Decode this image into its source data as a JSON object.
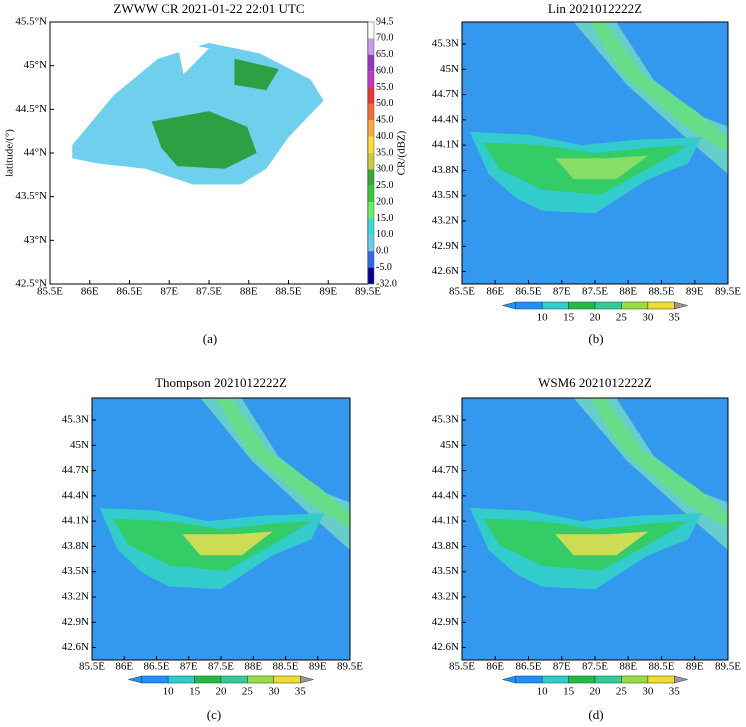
{
  "panels": [
    {
      "title": "ZWWW CR 2021-01-22 22:01 UTC",
      "ylabel": "latitude/(°)",
      "yticks": [
        "45.5°N",
        "45°N",
        "44.5°N",
        "44°N",
        "43.5°N",
        "43°N",
        "42.5°N"
      ],
      "xticks": [
        "85.5E",
        "86E",
        "86.5E",
        "87E",
        "87.5E",
        "88E",
        "88.5E",
        "89E",
        "89.5E"
      ],
      "colorbar": {
        "label": "CR/(dBZ)",
        "ticks": [
          "94.5",
          "70.0",
          "65.0",
          "60.0",
          "55.0",
          "50.0",
          "45.0",
          "40.0",
          "35.0",
          "30.0",
          "25.0",
          "20.0",
          "15.0",
          "10.0",
          "0.0",
          "-5.0",
          "-32.0"
        ]
      },
      "caption": "(a)"
    },
    {
      "title": "Lin 2021012222Z",
      "yticks": [
        "45.3N",
        "45N",
        "44.7N",
        "44.4N",
        "44.1N",
        "43.8N",
        "43.5N",
        "43.2N",
        "42.9N",
        "42.6N"
      ],
      "xticks": [
        "85.5E",
        "86E",
        "86.5E",
        "87E",
        "87.5E",
        "88E",
        "88.5E",
        "89E",
        "89.5E"
      ],
      "colorbar": {
        "ticks": [
          "10",
          "15",
          "20",
          "25",
          "30",
          "35"
        ]
      },
      "caption": "(b)"
    },
    {
      "title": "Thompson 2021012222Z",
      "yticks": [
        "45.3N",
        "45N",
        "44.7N",
        "44.4N",
        "44.1N",
        "43.8N",
        "43.5N",
        "43.2N",
        "42.9N",
        "42.6N"
      ],
      "xticks": [
        "85.5E",
        "86E",
        "86.5E",
        "87E",
        "87.5E",
        "88E",
        "88.5E",
        "89E",
        "89.5E"
      ],
      "colorbar": {
        "ticks": [
          "10",
          "15",
          "20",
          "25",
          "30",
          "35"
        ]
      },
      "caption": "(c)"
    },
    {
      "title": "WSM6 2021012222Z",
      "yticks": [
        "45.3N",
        "45N",
        "44.7N",
        "44.4N",
        "44.1N",
        "43.8N",
        "43.5N",
        "43.2N",
        "42.9N",
        "42.6N"
      ],
      "xticks": [
        "85.5E",
        "86E",
        "86.5E",
        "87E",
        "87.5E",
        "88E",
        "88.5E",
        "89E",
        "89.5E"
      ],
      "colorbar": {
        "ticks": [
          "10",
          "15",
          "20",
          "25",
          "30",
          "35"
        ]
      },
      "caption": "(d)"
    }
  ]
}
